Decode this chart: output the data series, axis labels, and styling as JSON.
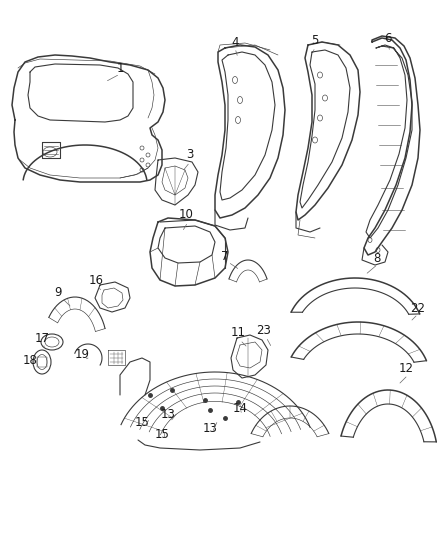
{
  "background_color": "#ffffff",
  "line_color": "#3a3a3a",
  "label_color": "#1a1a1a",
  "lw_main": 0.8,
  "lw_thin": 0.45,
  "lw_thick": 1.1,
  "figsize": [
    4.38,
    5.33
  ],
  "dpi": 100
}
